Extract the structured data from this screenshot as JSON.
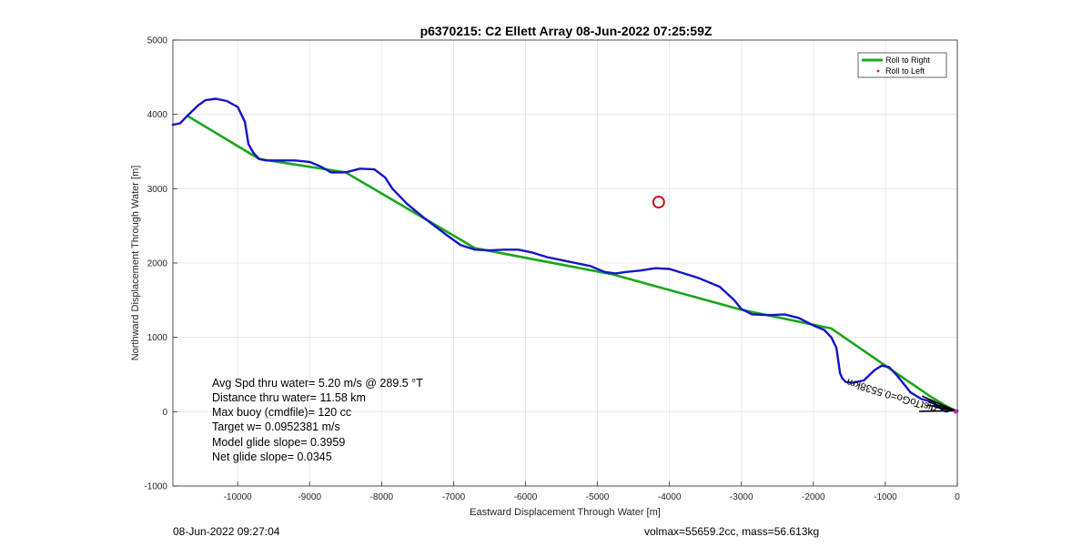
{
  "chart_data": {
    "type": "line",
    "title": "p6370215: C2 Ellett Array 08-Jun-2022 07:25:59Z",
    "xlabel": "Eastward Displacement Through Water [m]",
    "ylabel": "Northward Displacement Through Water [m]",
    "xlim": [
      -10900,
      0
    ],
    "ylim": [
      -1000,
      5000
    ],
    "xticks": [
      -10000,
      -9000,
      -8000,
      -7000,
      -6000,
      -5000,
      -4000,
      -3000,
      -2000,
      -1000,
      0
    ],
    "yticks": [
      -1000,
      0,
      1000,
      2000,
      3000,
      4000,
      5000
    ],
    "grid": true,
    "legend_position": "top-right",
    "legend": [
      {
        "label": "Roll to Right",
        "color": "#1aa51a",
        "style": "line"
      },
      {
        "label": "Roll to Left",
        "color": "#e0202a",
        "style": "dot"
      }
    ],
    "series": [
      {
        "name": "Roll to Right",
        "color": "#1aa51a",
        "x": [
          -10700,
          -9700,
          -8500,
          -6700,
          -4800,
          -3000,
          -1750,
          -850,
          -380,
          -180,
          0
        ],
        "y": [
          3980,
          3400,
          3220,
          2200,
          1850,
          1370,
          1120,
          520,
          210,
          90,
          0
        ]
      },
      {
        "name": "",
        "color": "#1414c8",
        "x": [
          -10900,
          -10800,
          -10700,
          -10550,
          -10450,
          -10300,
          -10150,
          -10000,
          -9900,
          -9850,
          -9780,
          -9700,
          -9600,
          -9400,
          -9200,
          -9000,
          -8850,
          -8700,
          -8500,
          -8300,
          -8100,
          -7950,
          -7850,
          -7650,
          -7400,
          -7100,
          -6900,
          -6700,
          -6500,
          -6300,
          -6100,
          -5900,
          -5700,
          -5400,
          -5100,
          -4900,
          -4750,
          -4600,
          -4400,
          -4200,
          -4000,
          -3800,
          -3600,
          -3300,
          -3100,
          -3000,
          -2850,
          -2600,
          -2400,
          -2200,
          -2000,
          -1850,
          -1750,
          -1680,
          -1650,
          -1630,
          -1600,
          -1550,
          -1450,
          -1300,
          -1150,
          -1050,
          -950,
          -850,
          -750,
          -650,
          -500,
          -380,
          -300,
          -250,
          -200,
          -150,
          -80,
          0
        ],
        "y": [
          3860,
          3880,
          3980,
          4120,
          4190,
          4210,
          4180,
          4100,
          3900,
          3600,
          3480,
          3400,
          3380,
          3380,
          3380,
          3360,
          3300,
          3220,
          3220,
          3270,
          3260,
          3150,
          3000,
          2800,
          2600,
          2380,
          2240,
          2180,
          2170,
          2180,
          2180,
          2140,
          2080,
          2020,
          1960,
          1880,
          1860,
          1880,
          1900,
          1930,
          1920,
          1860,
          1800,
          1680,
          1500,
          1380,
          1310,
          1300,
          1310,
          1260,
          1160,
          1100,
          1000,
          860,
          660,
          520,
          450,
          400,
          390,
          420,
          560,
          620,
          600,
          500,
          380,
          260,
          170,
          140,
          100,
          60,
          20,
          0,
          30,
          10
        ]
      }
    ],
    "marker": {
      "x": -4150,
      "y": 2820,
      "shape": "circle",
      "color": "#cc1414"
    },
    "rotated_annotation": "distToGo=0.5538km",
    "stats": [
      "Avg Spd thru water=  5.20 m/s @ 289.5 °T",
      "Distance thru water= 11.58 km",
      "Max buoy (cmdfile)= 120 cc",
      "Target w= 0.0952381 m/s",
      "Model glide slope= 0.3959",
      "Net glide slope= 0.0345"
    ]
  },
  "footer": {
    "left": "08-Jun-2022 09:27:04",
    "right": "volmax=55659.2cc, mass=56.613kg"
  }
}
